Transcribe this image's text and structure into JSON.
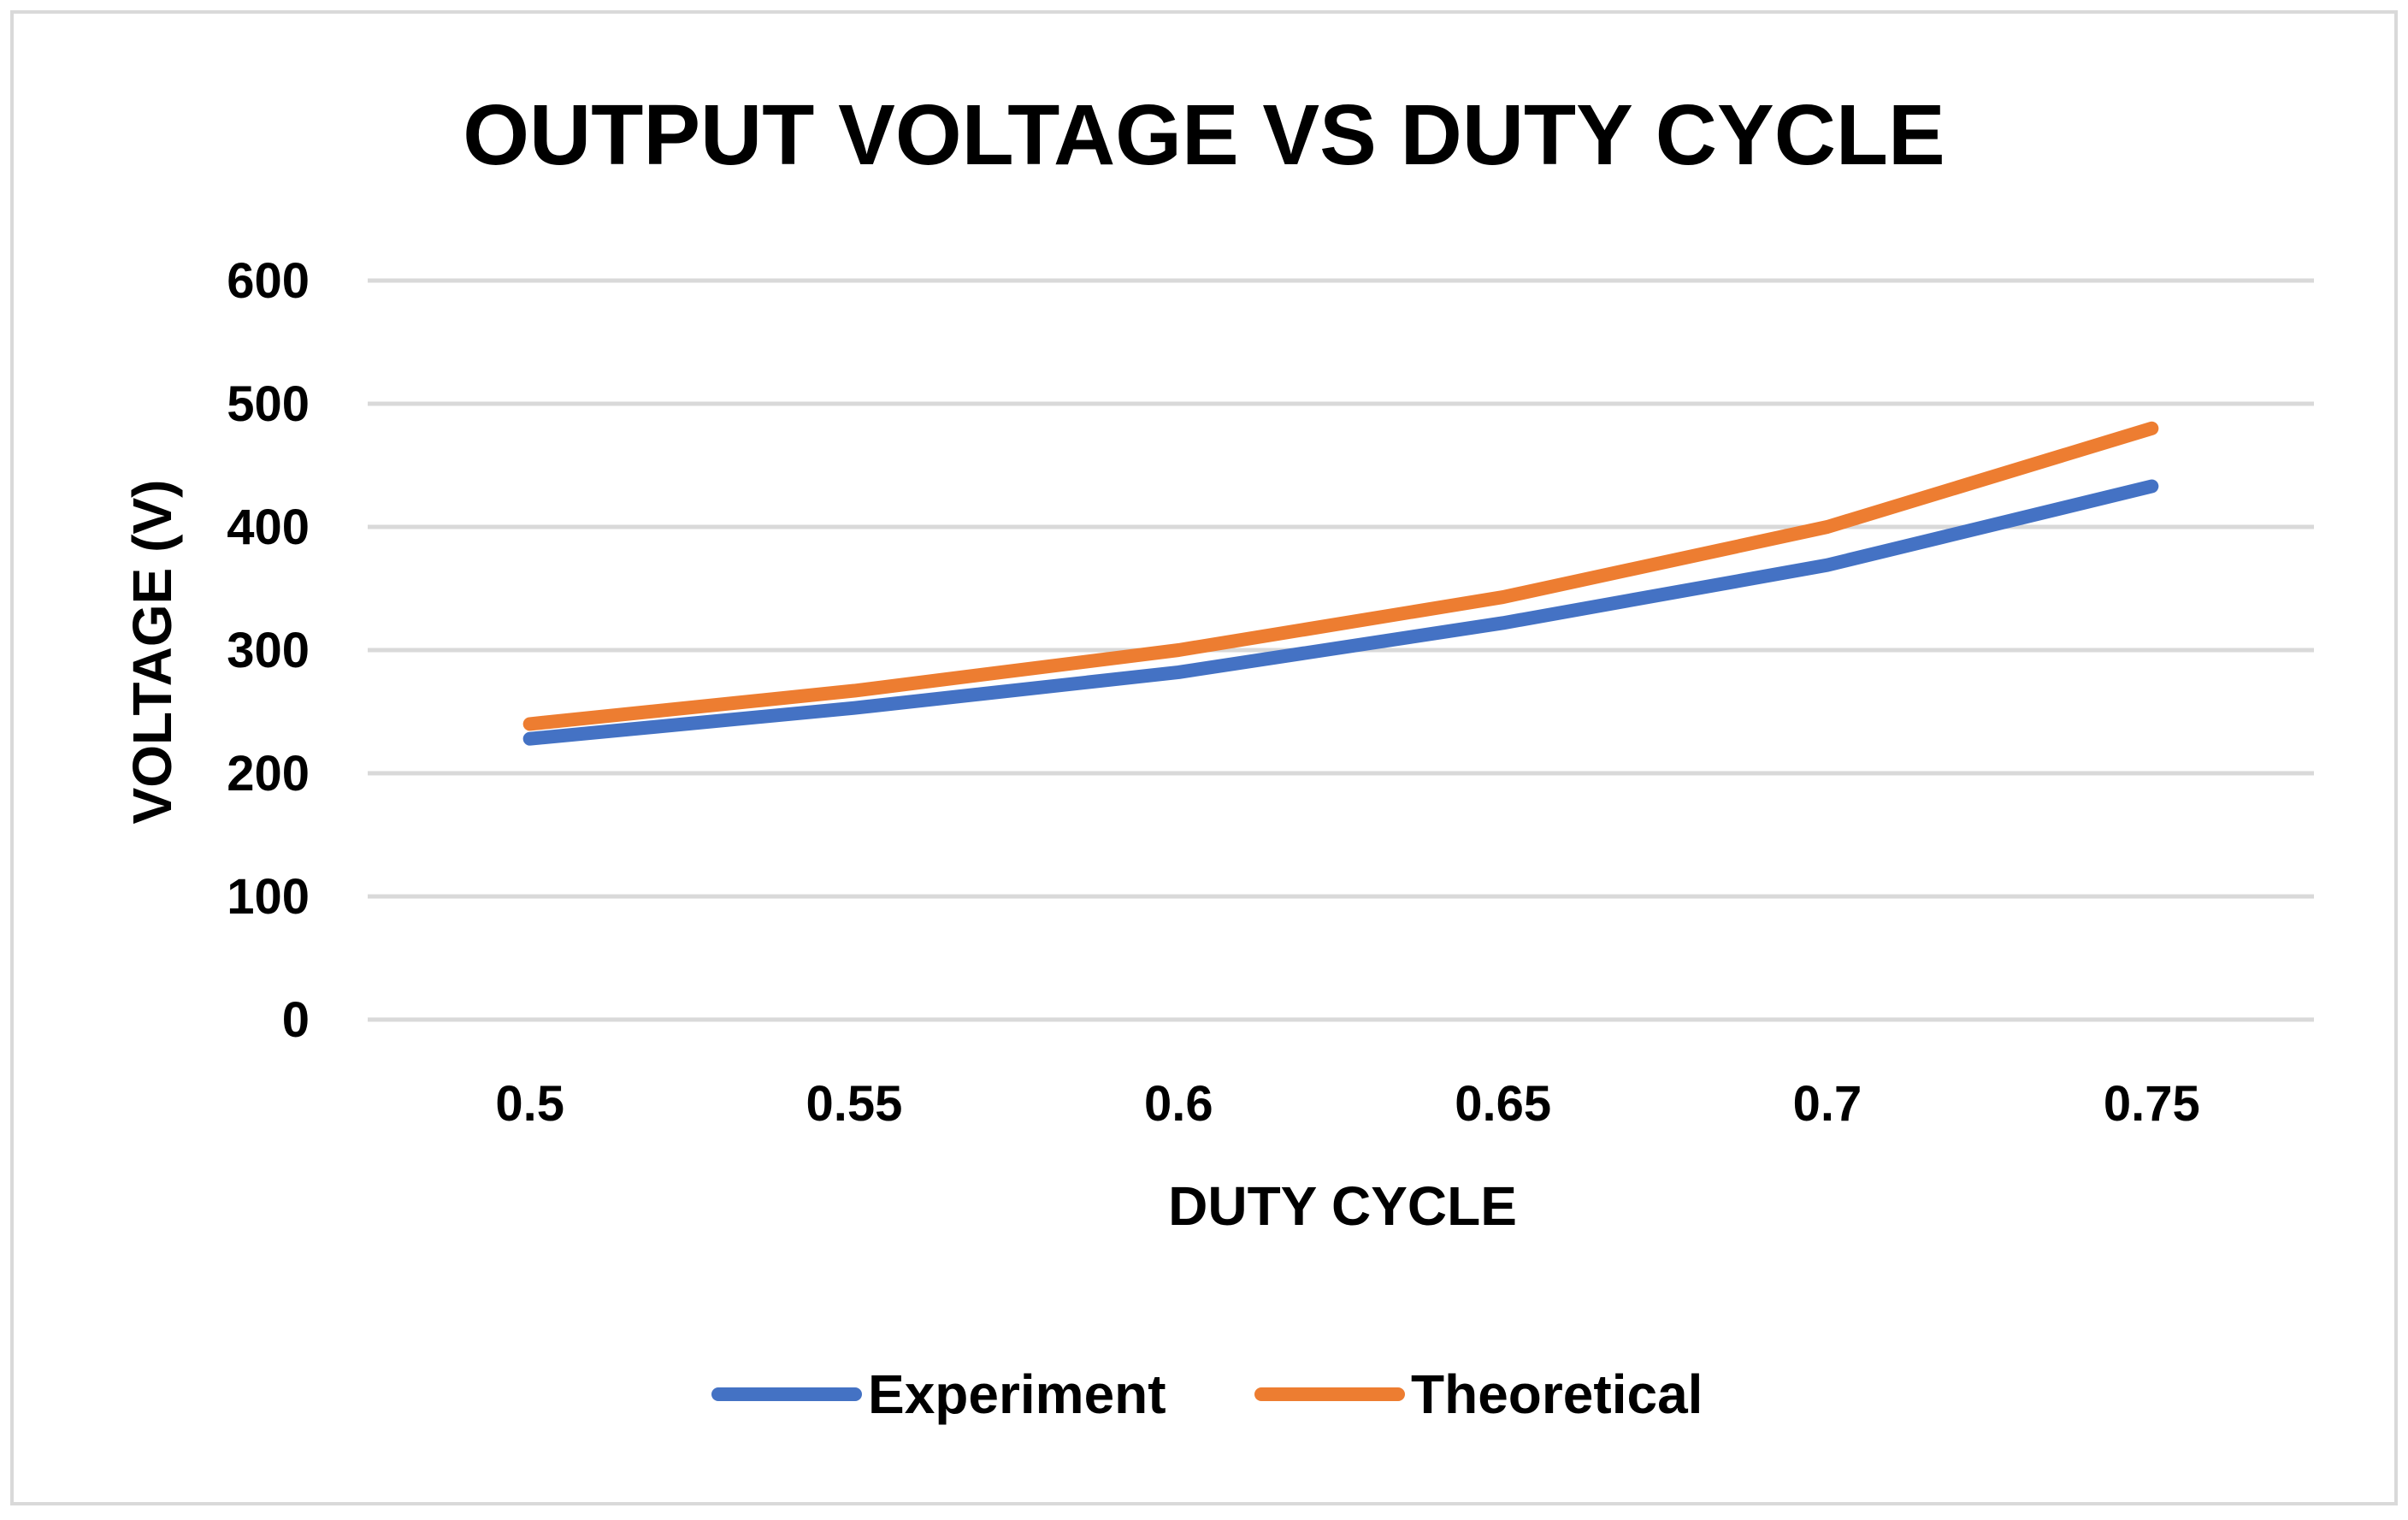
{
  "chart_data": {
    "type": "line",
    "title": "OUTPUT VOLTAGE VS DUTY CYCLE",
    "xlabel": "DUTY CYCLE",
    "ylabel": "VOLTAGE (V)",
    "categories": [
      "0.5",
      "0.55",
      "0.6",
      "0.65",
      "0.7",
      "0.75"
    ],
    "ylim": [
      0,
      600
    ],
    "yticks": [
      0,
      100,
      200,
      300,
      400,
      500,
      600
    ],
    "grid": true,
    "legend_position": "bottom",
    "series": [
      {
        "name": "Experiment",
        "color": "#4472C4",
        "values": [
          228,
          253,
          282,
          322,
          369,
          433
        ]
      },
      {
        "name": "Theoretical",
        "color": "#ED7D31",
        "values": [
          240,
          267,
          300,
          343,
          400,
          480
        ]
      }
    ]
  }
}
